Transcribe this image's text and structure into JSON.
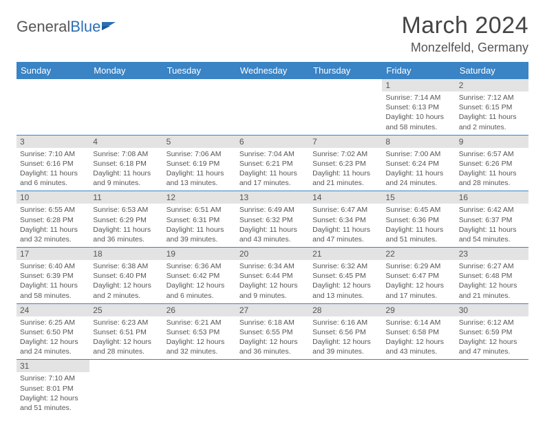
{
  "brand": {
    "part1": "General",
    "part2": "Blue"
  },
  "title": "March 2024",
  "location": "Monzelfeld, Germany",
  "weekday_header_bg": "#3a83c4",
  "cell_divider_color": "#3a83c4",
  "daynum_bg": "#e3e3e3",
  "weekdays": [
    "Sunday",
    "Monday",
    "Tuesday",
    "Wednesday",
    "Thursday",
    "Friday",
    "Saturday"
  ],
  "weeks": [
    [
      null,
      null,
      null,
      null,
      null,
      {
        "n": "1",
        "sr": "7:14 AM",
        "ss": "6:13 PM",
        "dl": "10 hours and 58 minutes."
      },
      {
        "n": "2",
        "sr": "7:12 AM",
        "ss": "6:15 PM",
        "dl": "11 hours and 2 minutes."
      }
    ],
    [
      {
        "n": "3",
        "sr": "7:10 AM",
        "ss": "6:16 PM",
        "dl": "11 hours and 6 minutes."
      },
      {
        "n": "4",
        "sr": "7:08 AM",
        "ss": "6:18 PM",
        "dl": "11 hours and 9 minutes."
      },
      {
        "n": "5",
        "sr": "7:06 AM",
        "ss": "6:19 PM",
        "dl": "11 hours and 13 minutes."
      },
      {
        "n": "6",
        "sr": "7:04 AM",
        "ss": "6:21 PM",
        "dl": "11 hours and 17 minutes."
      },
      {
        "n": "7",
        "sr": "7:02 AM",
        "ss": "6:23 PM",
        "dl": "11 hours and 21 minutes."
      },
      {
        "n": "8",
        "sr": "7:00 AM",
        "ss": "6:24 PM",
        "dl": "11 hours and 24 minutes."
      },
      {
        "n": "9",
        "sr": "6:57 AM",
        "ss": "6:26 PM",
        "dl": "11 hours and 28 minutes."
      }
    ],
    [
      {
        "n": "10",
        "sr": "6:55 AM",
        "ss": "6:28 PM",
        "dl": "11 hours and 32 minutes."
      },
      {
        "n": "11",
        "sr": "6:53 AM",
        "ss": "6:29 PM",
        "dl": "11 hours and 36 minutes."
      },
      {
        "n": "12",
        "sr": "6:51 AM",
        "ss": "6:31 PM",
        "dl": "11 hours and 39 minutes."
      },
      {
        "n": "13",
        "sr": "6:49 AM",
        "ss": "6:32 PM",
        "dl": "11 hours and 43 minutes."
      },
      {
        "n": "14",
        "sr": "6:47 AM",
        "ss": "6:34 PM",
        "dl": "11 hours and 47 minutes."
      },
      {
        "n": "15",
        "sr": "6:45 AM",
        "ss": "6:36 PM",
        "dl": "11 hours and 51 minutes."
      },
      {
        "n": "16",
        "sr": "6:42 AM",
        "ss": "6:37 PM",
        "dl": "11 hours and 54 minutes."
      }
    ],
    [
      {
        "n": "17",
        "sr": "6:40 AM",
        "ss": "6:39 PM",
        "dl": "11 hours and 58 minutes."
      },
      {
        "n": "18",
        "sr": "6:38 AM",
        "ss": "6:40 PM",
        "dl": "12 hours and 2 minutes."
      },
      {
        "n": "19",
        "sr": "6:36 AM",
        "ss": "6:42 PM",
        "dl": "12 hours and 6 minutes."
      },
      {
        "n": "20",
        "sr": "6:34 AM",
        "ss": "6:44 PM",
        "dl": "12 hours and 9 minutes."
      },
      {
        "n": "21",
        "sr": "6:32 AM",
        "ss": "6:45 PM",
        "dl": "12 hours and 13 minutes."
      },
      {
        "n": "22",
        "sr": "6:29 AM",
        "ss": "6:47 PM",
        "dl": "12 hours and 17 minutes."
      },
      {
        "n": "23",
        "sr": "6:27 AM",
        "ss": "6:48 PM",
        "dl": "12 hours and 21 minutes."
      }
    ],
    [
      {
        "n": "24",
        "sr": "6:25 AM",
        "ss": "6:50 PM",
        "dl": "12 hours and 24 minutes."
      },
      {
        "n": "25",
        "sr": "6:23 AM",
        "ss": "6:51 PM",
        "dl": "12 hours and 28 minutes."
      },
      {
        "n": "26",
        "sr": "6:21 AM",
        "ss": "6:53 PM",
        "dl": "12 hours and 32 minutes."
      },
      {
        "n": "27",
        "sr": "6:18 AM",
        "ss": "6:55 PM",
        "dl": "12 hours and 36 minutes."
      },
      {
        "n": "28",
        "sr": "6:16 AM",
        "ss": "6:56 PM",
        "dl": "12 hours and 39 minutes."
      },
      {
        "n": "29",
        "sr": "6:14 AM",
        "ss": "6:58 PM",
        "dl": "12 hours and 43 minutes."
      },
      {
        "n": "30",
        "sr": "6:12 AM",
        "ss": "6:59 PM",
        "dl": "12 hours and 47 minutes."
      }
    ],
    [
      {
        "n": "31",
        "sr": "7:10 AM",
        "ss": "8:01 PM",
        "dl": "12 hours and 51 minutes."
      },
      null,
      null,
      null,
      null,
      null,
      null
    ]
  ],
  "labels": {
    "sunrise": "Sunrise: ",
    "sunset": "Sunset: ",
    "daylight": "Daylight: "
  }
}
